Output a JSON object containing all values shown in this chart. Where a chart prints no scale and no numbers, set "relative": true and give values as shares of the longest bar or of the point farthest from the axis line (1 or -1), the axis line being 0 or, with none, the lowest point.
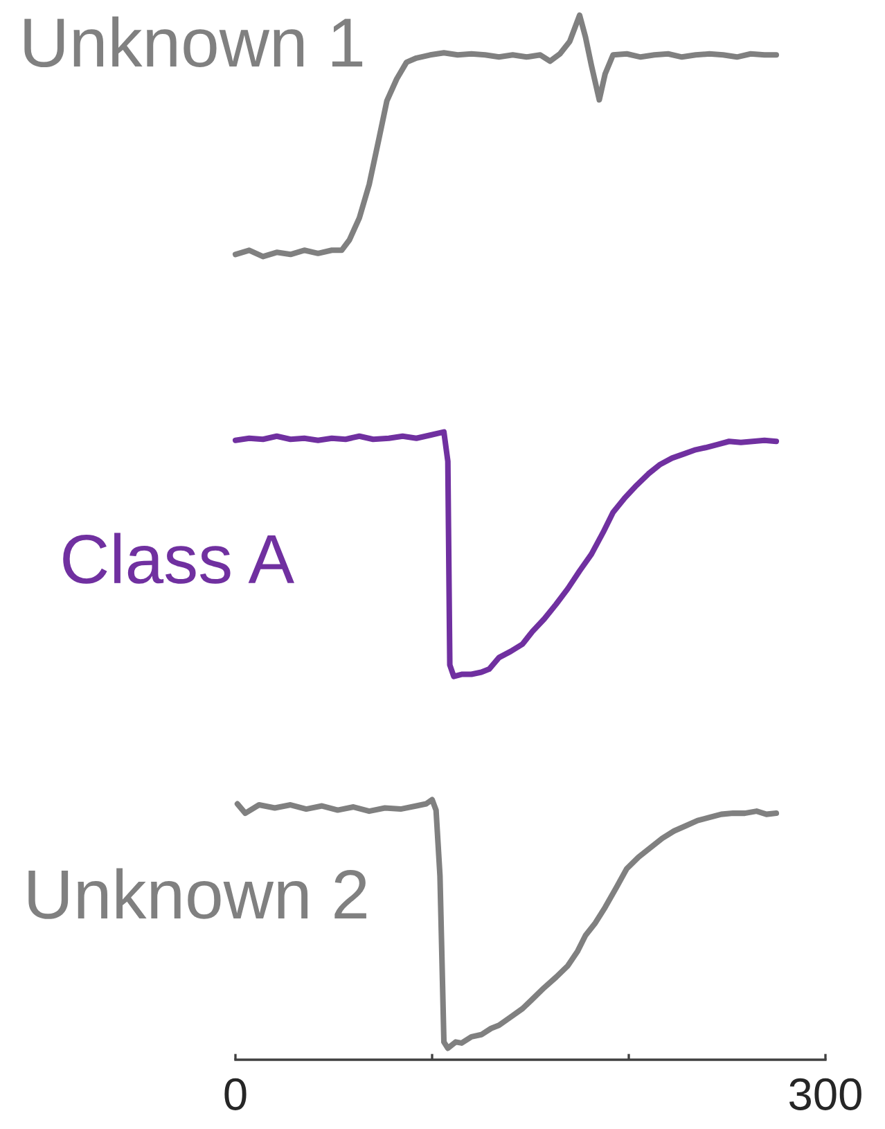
{
  "chart_data": {
    "type": "line",
    "relative": true,
    "tick_labels": "x",
    "xlim": [
      0,
      300
    ],
    "xticks": [
      0,
      {
        "value": 100,
        "label": null
      },
      {
        "value": 200,
        "label": null
      },
      300
    ],
    "series": [
      {
        "name": "Unknown 1",
        "color": "#808080",
        "x": [
          0,
          7,
          14,
          21,
          28,
          35,
          42,
          49,
          54,
          58,
          63,
          68,
          73,
          77,
          82,
          87,
          92,
          99,
          106,
          113,
          120,
          127,
          134,
          141,
          148,
          155,
          160,
          165,
          170,
          175,
          178,
          181,
          185,
          188,
          192,
          199,
          206,
          213,
          220,
          227,
          234,
          241,
          248,
          255,
          262,
          269,
          275
        ],
        "values": [
          0.771,
          0.775,
          0.769,
          0.773,
          0.771,
          0.775,
          0.772,
          0.775,
          0.775,
          0.785,
          0.806,
          0.838,
          0.882,
          0.918,
          0.939,
          0.955,
          0.959,
          0.962,
          0.964,
          0.962,
          0.963,
          0.962,
          0.96,
          0.962,
          0.96,
          0.962,
          0.956,
          0.963,
          0.975,
          1.0,
          0.979,
          0.952,
          0.919,
          0.944,
          0.962,
          0.963,
          0.96,
          0.962,
          0.963,
          0.96,
          0.962,
          0.963,
          0.962,
          0.96,
          0.963,
          0.962,
          0.962
        ]
      },
      {
        "name": "Class A",
        "color": "#7030a0",
        "x": [
          0,
          7,
          14,
          21,
          28,
          35,
          42,
          49,
          56,
          63,
          70,
          78,
          85,
          92,
          99,
          106,
          108,
          109,
          111,
          115,
          120,
          125,
          129,
          134,
          140,
          146,
          151,
          157,
          163,
          169,
          175,
          181,
          187,
          192,
          198,
          204,
          210,
          216,
          222,
          228,
          234,
          239,
          245,
          251,
          257,
          263,
          269,
          275
        ],
        "values": [
          0.593,
          0.595,
          0.594,
          0.597,
          0.594,
          0.595,
          0.593,
          0.595,
          0.594,
          0.597,
          0.594,
          0.595,
          0.597,
          0.595,
          0.598,
          0.601,
          0.573,
          0.378,
          0.367,
          0.369,
          0.369,
          0.371,
          0.374,
          0.385,
          0.391,
          0.398,
          0.41,
          0.422,
          0.436,
          0.451,
          0.468,
          0.484,
          0.505,
          0.524,
          0.538,
          0.55,
          0.561,
          0.57,
          0.576,
          0.58,
          0.584,
          0.586,
          0.589,
          0.592,
          0.591,
          0.592,
          0.593,
          0.592
        ]
      },
      {
        "name": "Unknown 2",
        "color": "#808080",
        "x": [
          1,
          5,
          12,
          20,
          28,
          36,
          44,
          52,
          60,
          68,
          76,
          84,
          92,
          97,
          100,
          102,
          104,
          106,
          108,
          112,
          115,
          120,
          125,
          130,
          134,
          140,
          146,
          151,
          157,
          163,
          169,
          174,
          178,
          183,
          188,
          194,
          199,
          205,
          211,
          217,
          223,
          229,
          235,
          241,
          247,
          253,
          259,
          265,
          270,
          275
        ],
        "values": [
          0.245,
          0.236,
          0.244,
          0.241,
          0.244,
          0.24,
          0.243,
          0.239,
          0.242,
          0.238,
          0.241,
          0.24,
          0.243,
          0.245,
          0.249,
          0.239,
          0.176,
          0.017,
          0.011,
          0.017,
          0.016,
          0.022,
          0.024,
          0.03,
          0.033,
          0.041,
          0.049,
          0.058,
          0.069,
          0.079,
          0.09,
          0.104,
          0.119,
          0.131,
          0.146,
          0.166,
          0.183,
          0.194,
          0.203,
          0.212,
          0.219,
          0.224,
          0.229,
          0.232,
          0.235,
          0.236,
          0.236,
          0.238,
          0.235,
          0.236
        ]
      }
    ]
  }
}
